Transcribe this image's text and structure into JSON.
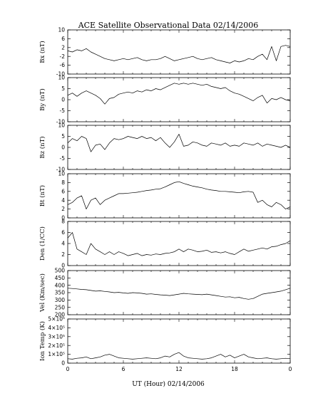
{
  "chart_data": {
    "type": "line",
    "title": "ACE Satellite Observational Data   02/14/2006",
    "xlabel": "UT (Hour)   02/14/2006",
    "x_tick_labels": [
      "0",
      "6",
      "12",
      "18",
      "0"
    ],
    "xlim": [
      0,
      24
    ],
    "panels": [
      {
        "name": "Bx (nT)",
        "ylim": [
          -10,
          10
        ],
        "y_ticks": [
          -10,
          -6,
          -2,
          2,
          6,
          10
        ],
        "y_tick_labels": [
          "-10",
          "-6",
          "-2",
          "2",
          "6",
          "10"
        ],
        "x": [
          0,
          0.5,
          1,
          1.5,
          2,
          2.5,
          3,
          3.5,
          4,
          4.5,
          5,
          5.5,
          6,
          6.5,
          7,
          7.5,
          8,
          8.5,
          9,
          9.5,
          10,
          10.5,
          11,
          11.5,
          12,
          12.5,
          13,
          13.5,
          14,
          14.5,
          15,
          15.5,
          16,
          16.5,
          17,
          17.5,
          18,
          18.5,
          19,
          19.5,
          20,
          20.5,
          21,
          21.5,
          22,
          22.5,
          23,
          23.5,
          24
        ],
        "values": [
          0.5,
          0,
          1,
          0.5,
          1.5,
          0,
          -1,
          -2,
          -3,
          -3.5,
          -4,
          -3.5,
          -3,
          -3.5,
          -3,
          -2.5,
          -3.5,
          -4,
          -3.5,
          -3.5,
          -3,
          -2,
          -3,
          -4,
          -3.5,
          -3,
          -2.5,
          -2,
          -3,
          -3.5,
          -3,
          -2.5,
          -3.5,
          -4,
          -4.5,
          -5,
          -4,
          -4.5,
          -4,
          -3,
          -3.5,
          -2,
          -1,
          -3.5,
          2.5,
          -4,
          2.5,
          3,
          2.5
        ]
      },
      {
        "name": "By (nT)",
        "ylim": [
          -10,
          10
        ],
        "y_ticks": [
          -10,
          -5,
          0,
          5,
          10
        ],
        "y_tick_labels": [
          "-10",
          "-5",
          "0",
          "5",
          "10"
        ],
        "x": [
          0,
          0.5,
          1,
          1.5,
          2,
          2.5,
          3,
          3.5,
          4,
          4.5,
          5,
          5.5,
          6,
          6.5,
          7,
          7.5,
          8,
          8.5,
          9,
          9.5,
          10,
          10.5,
          11,
          11.5,
          12,
          12.5,
          13,
          13.5,
          14,
          14.5,
          15,
          15.5,
          16,
          16.5,
          17,
          17.5,
          18,
          18.5,
          19,
          19.5,
          20,
          20.5,
          21,
          21.5,
          22,
          22.5,
          23,
          23.5,
          24
        ],
        "values": [
          2,
          3,
          1.5,
          3,
          4,
          3,
          2,
          0.5,
          -2,
          0.5,
          1,
          2.5,
          3,
          3.5,
          3,
          4,
          3.5,
          4.5,
          4,
          5,
          4.5,
          5.5,
          6.5,
          7.5,
          7,
          7.5,
          7,
          7.5,
          7,
          6.5,
          7,
          6,
          5.5,
          5,
          5.5,
          4,
          3,
          2.5,
          1.5,
          0.5,
          -0.5,
          1,
          2,
          -1.5,
          0.5,
          0,
          1,
          0,
          -0.5
        ]
      },
      {
        "name": "Bz (nT)",
        "ylim": [
          -10,
          10
        ],
        "y_ticks": [
          -10,
          -5,
          0,
          5,
          10
        ],
        "y_tick_labels": [
          "-10",
          "-5",
          "0",
          "5",
          "10"
        ],
        "x": [
          0,
          0.5,
          1,
          1.5,
          2,
          2.5,
          3,
          3.5,
          4,
          4.5,
          5,
          5.5,
          6,
          6.5,
          7,
          7.5,
          8,
          8.5,
          9,
          9.5,
          10,
          10.5,
          11,
          11.5,
          12,
          12.5,
          13,
          13.5,
          14,
          14.5,
          15,
          15.5,
          16,
          16.5,
          17,
          17.5,
          18,
          18.5,
          19,
          19.5,
          20,
          20.5,
          21,
          21.5,
          22,
          22.5,
          23,
          23.5,
          24
        ],
        "values": [
          2,
          4,
          3,
          5,
          4,
          -2,
          1,
          1.5,
          -1,
          2,
          4,
          3.5,
          4,
          5,
          4.5,
          4,
          5,
          4,
          4.5,
          3,
          4.5,
          2,
          0,
          2.5,
          6,
          0.5,
          1,
          2.5,
          2,
          1,
          0.5,
          2,
          1.5,
          1,
          2,
          0.5,
          1,
          0.5,
          2,
          1.5,
          1,
          2,
          0.5,
          1.5,
          1,
          0.5,
          0,
          1,
          0
        ]
      },
      {
        "name": "Bt (nT)",
        "ylim": [
          0,
          10
        ],
        "y_ticks": [
          0,
          2,
          4,
          6,
          8,
          10
        ],
        "y_tick_labels": [
          "0",
          "2",
          "4",
          "6",
          "8",
          "10"
        ],
        "x": [
          0,
          0.5,
          1,
          1.5,
          2,
          2.5,
          3,
          3.5,
          4,
          4.5,
          5,
          5.5,
          6,
          6.5,
          7,
          7.5,
          8,
          8.5,
          9,
          9.5,
          10,
          10.5,
          11,
          11.5,
          12,
          12.5,
          13,
          13.5,
          14,
          14.5,
          15,
          15.5,
          16,
          16.5,
          17,
          17.5,
          18,
          18.5,
          19,
          19.5,
          20,
          20.5,
          21,
          21.5,
          22,
          22.5,
          23,
          23.5,
          24
        ],
        "values": [
          3,
          3.5,
          4.5,
          5,
          2,
          4,
          4.5,
          3,
          4,
          4.5,
          5,
          5.5,
          5.5,
          5.6,
          5.7,
          5.8,
          6,
          6.2,
          6.3,
          6.5,
          6.6,
          7,
          7.5,
          8,
          8.2,
          7.8,
          7.5,
          7.2,
          7,
          6.8,
          6.5,
          6.3,
          6.2,
          6,
          6,
          5.9,
          5.8,
          5.7,
          5.9,
          6,
          5.8,
          3.5,
          4,
          3,
          2.5,
          3.5,
          3,
          2,
          2.5
        ]
      },
      {
        "name": "Den (1/CC)",
        "ylim": [
          0,
          8
        ],
        "y_ticks": [
          0,
          2,
          4,
          6,
          8
        ],
        "y_tick_labels": [
          "0",
          "2",
          "4",
          "6",
          "8"
        ],
        "x": [
          0,
          0.5,
          1,
          1.5,
          2,
          2.5,
          3,
          3.5,
          4,
          4.5,
          5,
          5.5,
          6,
          6.5,
          7,
          7.5,
          8,
          8.5,
          9,
          9.5,
          10,
          10.5,
          11,
          11.5,
          12,
          12.5,
          13,
          13.5,
          14,
          14.5,
          15,
          15.5,
          16,
          16.5,
          17,
          17.5,
          18,
          18.5,
          19,
          19.5,
          20,
          20.5,
          21,
          21.5,
          22,
          22.5,
          23,
          23.5,
          24
        ],
        "values": [
          5,
          6,
          3,
          2.5,
          2,
          4,
          3,
          2.5,
          2,
          2.5,
          2,
          2.5,
          2.2,
          1.8,
          2,
          2.2,
          1.8,
          2,
          1.9,
          2.1,
          2,
          2.2,
          2.3,
          2.5,
          3,
          2.5,
          3,
          2.8,
          2.5,
          2.6,
          2.8,
          2.4,
          2.5,
          2.3,
          2.5,
          2.2,
          2,
          2.5,
          3,
          2.6,
          2.8,
          3,
          3.2,
          3,
          3.4,
          3.5,
          3.8,
          4,
          4.5
        ]
      },
      {
        "name": "Vel (Km/sec)",
        "ylim": [
          200,
          500
        ],
        "y_ticks": [
          200,
          250,
          300,
          350,
          400,
          450,
          500
        ],
        "y_tick_labels": [
          "200",
          "250",
          "300",
          "350",
          "400",
          "450",
          "500"
        ],
        "x": [
          0,
          0.5,
          1,
          1.5,
          2,
          2.5,
          3,
          3.5,
          4,
          4.5,
          5,
          5.5,
          6,
          6.5,
          7,
          7.5,
          8,
          8.5,
          9,
          9.5,
          10,
          10.5,
          11,
          11.5,
          12,
          12.5,
          13,
          13.5,
          14,
          14.5,
          15,
          15.5,
          16,
          16.5,
          17,
          17.5,
          18,
          18.5,
          19,
          19.5,
          20,
          20.5,
          21,
          21.5,
          22,
          22.5,
          23,
          23.5,
          24
        ],
        "values": [
          380,
          378,
          375,
          372,
          370,
          365,
          360,
          362,
          358,
          355,
          350,
          352,
          348,
          345,
          350,
          348,
          345,
          340,
          342,
          338,
          335,
          333,
          330,
          335,
          340,
          345,
          342,
          340,
          338,
          336,
          340,
          335,
          330,
          325,
          320,
          322,
          315,
          318,
          310,
          305,
          310,
          325,
          340,
          345,
          350,
          355,
          360,
          370,
          380
        ]
      },
      {
        "name": "Ion Temp (K)",
        "ylim": [
          0,
          500000
        ],
        "y_ticks": [
          0,
          100000,
          200000,
          300000,
          400000,
          500000
        ],
        "y_tick_labels": [
          "0",
          "1×10⁵",
          "2×10⁵",
          "3×10⁵",
          "4×10⁵",
          "5×10⁵"
        ],
        "x": [
          0,
          0.5,
          1,
          1.5,
          2,
          2.5,
          3,
          3.5,
          4,
          4.5,
          5,
          5.5,
          6,
          6.5,
          7,
          7.5,
          8,
          8.5,
          9,
          9.5,
          10,
          10.5,
          11,
          11.5,
          12,
          12.5,
          13,
          13.5,
          14,
          14.5,
          15,
          15.5,
          16,
          16.5,
          17,
          17.5,
          18,
          18.5,
          19,
          19.5,
          20,
          20.5,
          21,
          21.5,
          22,
          22.5,
          23,
          23.5,
          24
        ],
        "values": [
          50000,
          45000,
          55000,
          60000,
          70000,
          50000,
          60000,
          70000,
          90000,
          100000,
          80000,
          60000,
          55000,
          50000,
          45000,
          50000,
          55000,
          60000,
          55000,
          50000,
          60000,
          80000,
          70000,
          100000,
          120000,
          80000,
          60000,
          55000,
          50000,
          45000,
          50000,
          60000,
          80000,
          100000,
          70000,
          90000,
          60000,
          80000,
          100000,
          70000,
          60000,
          50000,
          55000,
          60000,
          50000,
          45000,
          50000,
          55000,
          50000
        ]
      }
    ]
  }
}
